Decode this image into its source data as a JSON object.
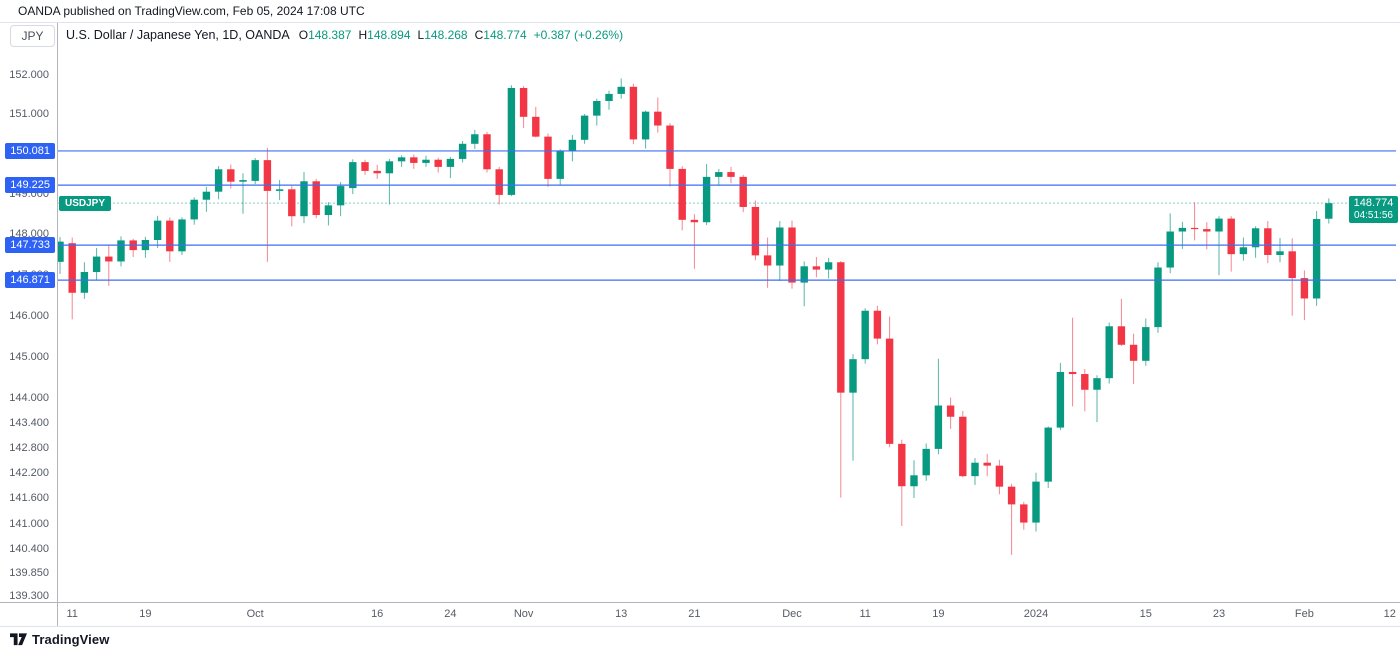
{
  "publish_bar": {
    "text": "OANDA published on TradingView.com, Feb 05, 2024 17:08 UTC"
  },
  "symbol_box": {
    "value": "JPY"
  },
  "legend": {
    "title": "U.S. Dollar / Japanese Yen, 1D, OANDA",
    "ohlc": {
      "o_label": "O",
      "o": "148.387",
      "h_label": "H",
      "h": "148.894",
      "l_label": "L",
      "l": "148.268",
      "c_label": "C",
      "c": "148.774",
      "change": "+0.387 (+0.26%)"
    }
  },
  "price_line": {
    "badge": "USDJPY",
    "price": "148.774",
    "countdown": "04:51:56"
  },
  "logo": {
    "text": "TradingView"
  },
  "colors": {
    "up_body": "#089981",
    "down_body": "#F23645",
    "up_wick": "#56b6a7",
    "down_wick": "#f4868e",
    "level_line": "#3d6ff2",
    "level_label_bg": "#2e62f4",
    "price_line": "#089981",
    "price_label_bg": "#089981",
    "ohlc_value": "#089981",
    "change_text": "#089981",
    "axis_text": "#555a64",
    "title_text": "#131722"
  },
  "chart_data": {
    "type": "candlestick",
    "symbol": "USDJPY",
    "title": "U.S. Dollar / Japanese Yen",
    "timeframe": "1D",
    "exchange": "OANDA",
    "scale": "log",
    "price_range_visible": [
      139.15,
      153.1
    ],
    "current_price": 148.774,
    "levels": [
      {
        "price": 150.081,
        "label": "150.081"
      },
      {
        "price": 149.225,
        "label": "149.225"
      },
      {
        "price": 147.733,
        "label": "147.733"
      },
      {
        "price": 146.871,
        "label": "146.871"
      }
    ],
    "y_ticks": [
      {
        "label": "152.000",
        "price": 152.0
      },
      {
        "label": "151.000",
        "price": 151.0
      },
      {
        "label": "149.000",
        "price": 149.0
      },
      {
        "label": "148.000",
        "price": 148.0
      },
      {
        "label": "147.000",
        "price": 147.0
      },
      {
        "label": "146.000",
        "price": 146.0
      },
      {
        "label": "145.000",
        "price": 145.0
      },
      {
        "label": "144.000",
        "price": 144.0
      },
      {
        "label": "143.400",
        "price": 143.4
      },
      {
        "label": "142.800",
        "price": 142.8
      },
      {
        "label": "142.200",
        "price": 142.2
      },
      {
        "label": "141.600",
        "price": 141.6
      },
      {
        "label": "141.000",
        "price": 141.0
      },
      {
        "label": "140.400",
        "price": 140.4
      },
      {
        "label": "139.850",
        "price": 139.85
      },
      {
        "label": "139.300",
        "price": 139.3
      }
    ],
    "x_ticks": [
      {
        "label": "11",
        "index": 1
      },
      {
        "label": "19",
        "index": 7
      },
      {
        "label": "Oct",
        "index": 16
      },
      {
        "label": "16",
        "index": 26
      },
      {
        "label": "24",
        "index": 32
      },
      {
        "label": "Nov",
        "index": 38
      },
      {
        "label": "13",
        "index": 46
      },
      {
        "label": "21",
        "index": 52
      },
      {
        "label": "Dec",
        "index": 60
      },
      {
        "label": "11",
        "index": 66
      },
      {
        "label": "19",
        "index": 72
      },
      {
        "label": "2024",
        "index": 80
      },
      {
        "label": "15",
        "index": 89
      },
      {
        "label": "23",
        "index": 95
      },
      {
        "label": "Feb",
        "index": 102
      },
      {
        "label": "12",
        "index": 109
      }
    ],
    "candle_columns": [
      "date",
      "open",
      "high",
      "low",
      "close"
    ],
    "candles": [
      [
        "2023-09-08",
        147.32,
        147.93,
        147.02,
        147.82
      ],
      [
        "2023-09-11",
        147.78,
        147.92,
        145.91,
        146.56
      ],
      [
        "2023-09-12",
        146.56,
        147.31,
        146.41,
        147.07
      ],
      [
        "2023-09-13",
        147.07,
        147.66,
        146.86,
        147.45
      ],
      [
        "2023-09-14",
        147.45,
        147.74,
        146.73,
        147.33
      ],
      [
        "2023-09-15",
        147.33,
        147.95,
        147.21,
        147.85
      ],
      [
        "2023-09-18",
        147.85,
        147.89,
        147.44,
        147.61
      ],
      [
        "2023-09-19",
        147.61,
        147.94,
        147.42,
        147.86
      ],
      [
        "2023-09-20",
        147.86,
        148.46,
        147.66,
        148.34
      ],
      [
        "2023-09-21",
        148.34,
        148.42,
        147.32,
        147.58
      ],
      [
        "2023-09-22",
        147.58,
        148.42,
        147.49,
        148.37
      ],
      [
        "2023-09-25",
        148.37,
        148.92,
        148.24,
        148.86
      ],
      [
        "2023-09-26",
        148.86,
        149.18,
        148.56,
        149.06
      ],
      [
        "2023-09-27",
        149.06,
        149.7,
        148.87,
        149.62
      ],
      [
        "2023-09-28",
        149.62,
        149.74,
        149.14,
        149.31
      ],
      [
        "2023-09-29",
        149.31,
        149.52,
        148.51,
        149.35
      ],
      [
        "2023-10-02",
        149.33,
        149.9,
        149.25,
        149.85
      ],
      [
        "2023-10-03",
        149.85,
        150.16,
        147.32,
        149.08
      ],
      [
        "2023-10-04",
        149.08,
        149.35,
        148.85,
        149.12
      ],
      [
        "2023-10-05",
        149.12,
        149.2,
        148.2,
        148.45
      ],
      [
        "2023-10-06",
        148.45,
        149.55,
        148.28,
        149.32
      ],
      [
        "2023-10-09",
        149.32,
        149.38,
        148.4,
        148.48
      ],
      [
        "2023-10-10",
        148.48,
        148.8,
        148.22,
        148.72
      ],
      [
        "2023-10-11",
        148.72,
        149.3,
        148.45,
        149.2
      ],
      [
        "2023-10-12",
        149.15,
        149.87,
        149.0,
        149.8
      ],
      [
        "2023-10-13",
        149.8,
        149.86,
        149.48,
        149.58
      ],
      [
        "2023-10-16",
        149.58,
        149.73,
        149.38,
        149.52
      ],
      [
        "2023-10-17",
        149.52,
        149.88,
        148.74,
        149.82
      ],
      [
        "2023-10-18",
        149.82,
        149.97,
        149.68,
        149.92
      ],
      [
        "2023-10-19",
        149.92,
        149.99,
        149.63,
        149.78
      ],
      [
        "2023-10-20",
        149.78,
        149.96,
        149.68,
        149.86
      ],
      [
        "2023-10-23",
        149.86,
        149.91,
        149.54,
        149.68
      ],
      [
        "2023-10-24",
        149.68,
        149.93,
        149.4,
        149.88
      ],
      [
        "2023-10-25",
        149.88,
        150.33,
        149.79,
        150.26
      ],
      [
        "2023-10-26",
        150.26,
        150.61,
        150.13,
        150.5
      ],
      [
        "2023-10-27",
        150.5,
        150.56,
        149.54,
        149.62
      ],
      [
        "2023-10-30",
        149.62,
        149.68,
        148.74,
        148.98
      ],
      [
        "2023-10-31",
        148.98,
        151.74,
        148.95,
        151.67
      ],
      [
        "2023-11-01",
        151.67,
        151.72,
        150.66,
        150.94
      ],
      [
        "2023-11-02",
        150.94,
        151.19,
        150.42,
        150.44
      ],
      [
        "2023-11-03",
        150.44,
        150.52,
        149.18,
        149.38
      ],
      [
        "2023-11-06",
        149.38,
        150.12,
        149.22,
        150.07
      ],
      [
        "2023-11-07",
        150.07,
        150.48,
        149.82,
        150.36
      ],
      [
        "2023-11-08",
        150.36,
        151.01,
        150.26,
        150.97
      ],
      [
        "2023-11-09",
        150.97,
        151.4,
        150.72,
        151.34
      ],
      [
        "2023-11-10",
        151.34,
        151.6,
        151.12,
        151.52
      ],
      [
        "2023-11-13",
        151.52,
        151.91,
        151.4,
        151.7
      ],
      [
        "2023-11-14",
        151.7,
        151.78,
        150.25,
        150.37
      ],
      [
        "2023-11-15",
        150.37,
        151.1,
        150.14,
        151.07
      ],
      [
        "2023-11-16",
        151.07,
        151.43,
        150.54,
        150.72
      ],
      [
        "2023-11-17",
        150.72,
        150.78,
        149.19,
        149.63
      ],
      [
        "2023-11-20",
        149.63,
        149.7,
        148.1,
        148.36
      ],
      [
        "2023-11-21",
        148.36,
        148.5,
        147.15,
        148.3
      ],
      [
        "2023-11-22",
        148.3,
        149.75,
        148.23,
        149.43
      ],
      [
        "2023-11-23",
        149.43,
        149.63,
        149.21,
        149.55
      ],
      [
        "2023-11-24",
        149.55,
        149.68,
        149.27,
        149.43
      ],
      [
        "2023-11-27",
        149.43,
        149.48,
        148.55,
        148.68
      ],
      [
        "2023-11-28",
        148.68,
        148.84,
        147.36,
        147.48
      ],
      [
        "2023-11-29",
        147.48,
        147.92,
        146.68,
        147.23
      ],
      [
        "2023-11-30",
        147.23,
        148.33,
        146.85,
        148.17
      ],
      [
        "2023-12-01",
        148.17,
        148.34,
        146.66,
        146.81
      ],
      [
        "2023-12-04",
        146.81,
        147.33,
        146.23,
        147.21
      ],
      [
        "2023-12-05",
        147.21,
        147.44,
        146.94,
        147.13
      ],
      [
        "2023-12-06",
        147.13,
        147.42,
        146.91,
        147.31
      ],
      [
        "2023-12-07",
        147.31,
        147.34,
        141.62,
        144.13
      ],
      [
        "2023-12-08",
        144.13,
        145.06,
        142.5,
        144.94
      ],
      [
        "2023-12-11",
        144.94,
        146.18,
        144.83,
        146.12
      ],
      [
        "2023-12-12",
        146.12,
        146.24,
        145.3,
        145.44
      ],
      [
        "2023-12-13",
        145.44,
        145.98,
        142.82,
        142.9
      ],
      [
        "2023-12-14",
        142.9,
        143.0,
        140.95,
        141.89
      ],
      [
        "2023-12-15",
        141.89,
        142.51,
        141.61,
        142.15
      ],
      [
        "2023-12-18",
        142.15,
        142.91,
        142.02,
        142.78
      ],
      [
        "2023-12-19",
        142.78,
        144.95,
        142.65,
        143.82
      ],
      [
        "2023-12-20",
        143.82,
        144.01,
        143.26,
        143.55
      ],
      [
        "2023-12-21",
        143.55,
        143.69,
        142.1,
        142.13
      ],
      [
        "2023-12-22",
        142.13,
        142.56,
        141.92,
        142.45
      ],
      [
        "2023-12-26",
        142.45,
        142.66,
        142.13,
        142.38
      ],
      [
        "2023-12-27",
        142.38,
        142.52,
        141.7,
        141.88
      ],
      [
        "2023-12-28",
        141.88,
        141.95,
        140.27,
        141.46
      ],
      [
        "2023-12-29",
        141.46,
        141.52,
        140.86,
        141.03
      ],
      [
        "2024-01-02",
        141.03,
        142.21,
        140.82,
        142.0
      ],
      [
        "2024-01-03",
        142.0,
        143.32,
        141.85,
        143.29
      ],
      [
        "2024-01-04",
        143.29,
        144.85,
        143.23,
        144.63
      ],
      [
        "2024-01-05",
        144.63,
        145.95,
        143.8,
        144.58
      ],
      [
        "2024-01-08",
        144.58,
        144.7,
        143.68,
        144.2
      ],
      [
        "2024-01-09",
        144.2,
        144.55,
        143.42,
        144.48
      ],
      [
        "2024-01-10",
        144.48,
        145.83,
        144.35,
        145.74
      ],
      [
        "2024-01-11",
        145.74,
        146.41,
        145.26,
        145.29
      ],
      [
        "2024-01-12",
        145.29,
        145.56,
        144.34,
        144.9
      ],
      [
        "2024-01-15",
        144.9,
        145.93,
        144.78,
        145.72
      ],
      [
        "2024-01-16",
        145.72,
        147.31,
        145.58,
        147.18
      ],
      [
        "2024-01-17",
        147.18,
        148.52,
        147.04,
        148.07
      ],
      [
        "2024-01-18",
        148.07,
        148.31,
        147.64,
        148.16
      ],
      [
        "2024-01-19",
        148.16,
        148.8,
        147.85,
        148.13
      ],
      [
        "2024-01-22",
        148.13,
        148.3,
        147.63,
        148.07
      ],
      [
        "2024-01-23",
        148.07,
        148.45,
        146.99,
        148.39
      ],
      [
        "2024-01-24",
        148.39,
        148.45,
        147.08,
        147.51
      ],
      [
        "2024-01-25",
        147.51,
        147.92,
        147.35,
        147.68
      ],
      [
        "2024-01-26",
        147.68,
        148.2,
        147.42,
        148.15
      ],
      [
        "2024-01-29",
        148.15,
        148.33,
        147.29,
        147.49
      ],
      [
        "2024-01-30",
        147.49,
        147.91,
        147.31,
        147.58
      ],
      [
        "2024-01-31",
        147.58,
        147.9,
        146.0,
        146.92
      ],
      [
        "2024-02-01",
        146.92,
        147.11,
        145.89,
        146.42
      ],
      [
        "2024-02-02",
        146.42,
        148.58,
        146.24,
        148.38
      ],
      [
        "2024-02-05",
        148.387,
        148.894,
        148.268,
        148.774
      ]
    ]
  }
}
